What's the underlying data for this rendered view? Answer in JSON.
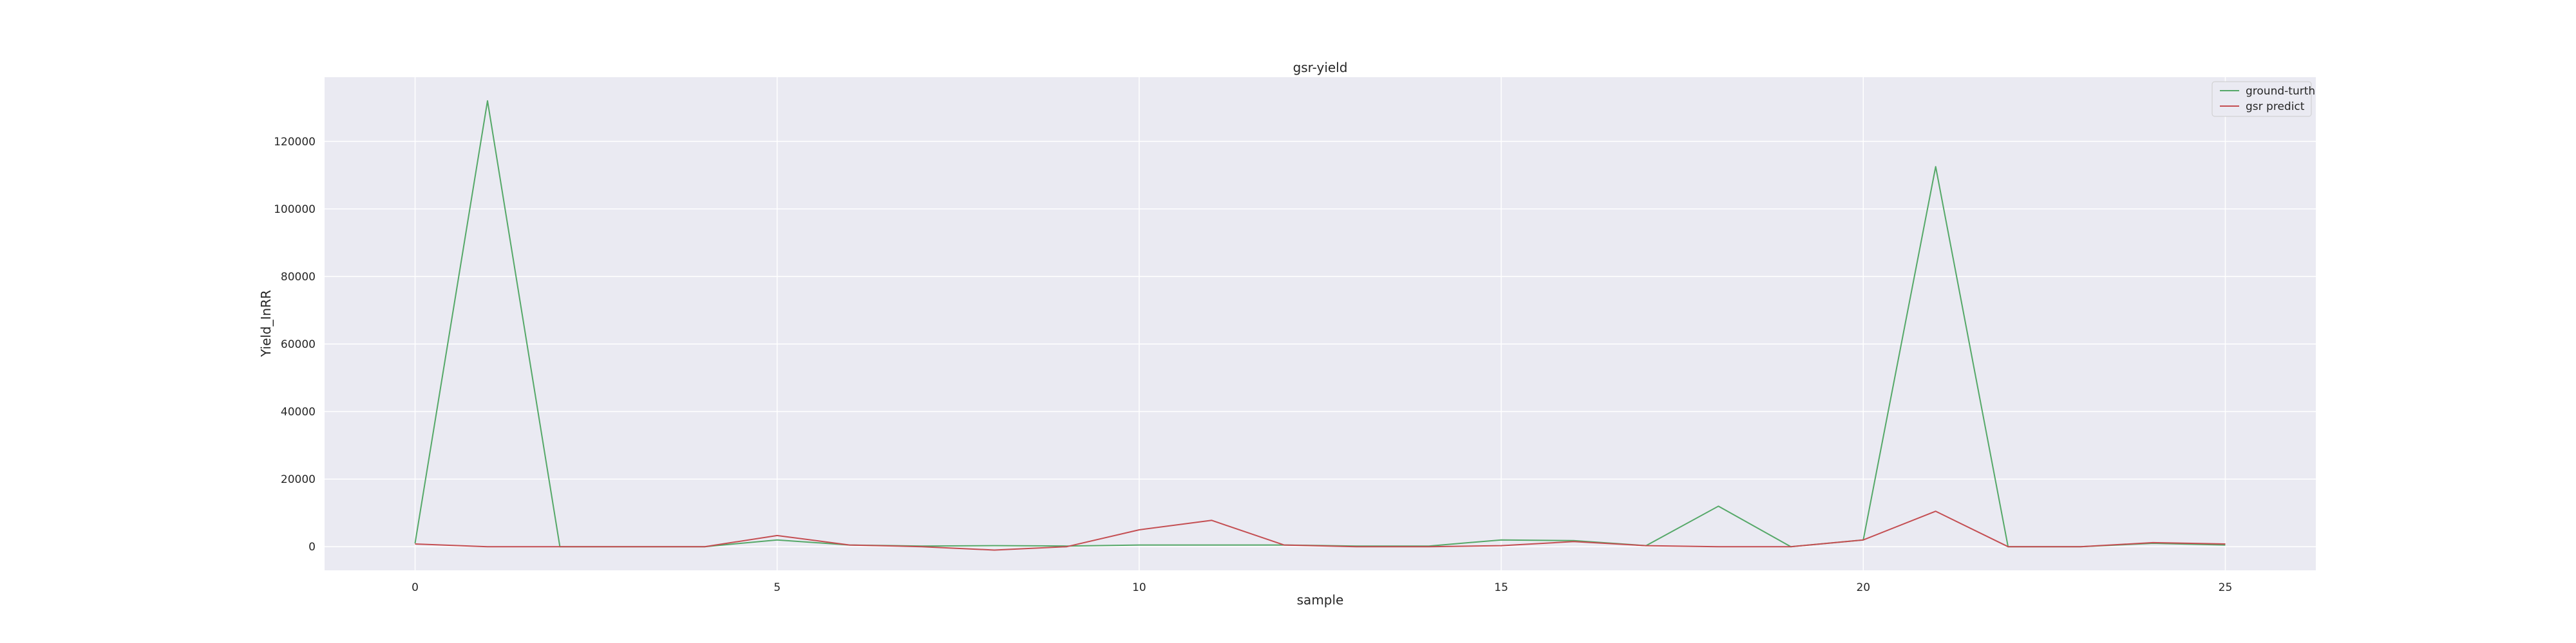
{
  "chart_data": {
    "type": "line",
    "title": "gsr-yield",
    "xlabel": "sample",
    "ylabel": "Yield_InRR",
    "x": [
      0,
      1,
      2,
      3,
      4,
      5,
      6,
      7,
      8,
      9,
      10,
      11,
      12,
      13,
      14,
      15,
      16,
      17,
      18,
      19,
      20,
      21,
      22,
      23,
      24,
      25
    ],
    "xlim": [
      -1.25,
      26.25
    ],
    "ylim": [
      -7000,
      139000
    ],
    "xticks": [
      0,
      5,
      10,
      15,
      20,
      25
    ],
    "yticks": [
      0,
      20000,
      40000,
      60000,
      80000,
      100000,
      120000
    ],
    "grid": true,
    "legend_position": "top-right",
    "series": [
      {
        "name": "ground-turth",
        "color": "#55a868",
        "values": [
          1000,
          132000,
          0,
          0,
          0,
          2000,
          500,
          200,
          300,
          200,
          500,
          500,
          500,
          200,
          200,
          2000,
          1800,
          300,
          12000,
          0,
          2000,
          112500,
          0,
          0,
          1000,
          500
        ]
      },
      {
        "name": "gsr predict",
        "color": "#c44e52",
        "values": [
          800,
          0,
          0,
          0,
          0,
          3300,
          500,
          0,
          -1000,
          0,
          5000,
          7800,
          500,
          0,
          0,
          300,
          1500,
          300,
          0,
          0,
          2000,
          10500,
          0,
          0,
          1200,
          800
        ]
      }
    ]
  }
}
